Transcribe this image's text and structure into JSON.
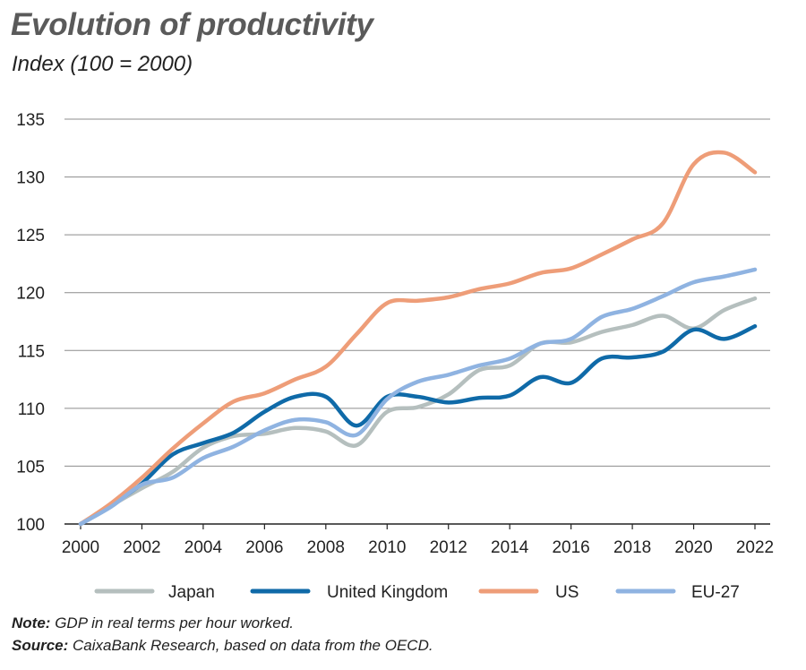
{
  "chart_data": {
    "type": "line",
    "title": "Evolution of productivity",
    "subtitle": "Index (100 = 2000)",
    "xlabel": "",
    "ylabel": "",
    "x": [
      2000,
      2001,
      2002,
      2003,
      2004,
      2005,
      2006,
      2007,
      2008,
      2009,
      2010,
      2011,
      2012,
      2013,
      2014,
      2015,
      2016,
      2017,
      2018,
      2019,
      2020,
      2021,
      2022
    ],
    "xticks": [
      "2000",
      "2002",
      "2004",
      "2006",
      "2008",
      "2010",
      "2012",
      "2014",
      "2016",
      "2018",
      "2020",
      "2022"
    ],
    "yticks": [
      "100",
      "105",
      "110",
      "115",
      "120",
      "125",
      "130",
      "135"
    ],
    "ylim": [
      100,
      135
    ],
    "xlim": [
      2000,
      2022
    ],
    "grid": true,
    "legend_position": "bottom",
    "series": [
      {
        "name": "Japan",
        "color": "#b5bfbe",
        "values": [
          100,
          101.6,
          103.1,
          104.5,
          106.6,
          107.6,
          107.8,
          108.3,
          108.0,
          106.8,
          109.7,
          110.1,
          111.2,
          113.3,
          113.7,
          115.6,
          115.7,
          116.6,
          117.2,
          118.0,
          116.9,
          118.5,
          119.5
        ]
      },
      {
        "name": "United Kingdom",
        "color": "#0f6aa8",
        "values": [
          100,
          101.6,
          103.5,
          106.0,
          107.0,
          107.9,
          109.7,
          111.0,
          111.0,
          108.5,
          111.0,
          111.0,
          110.5,
          110.9,
          111.1,
          112.7,
          112.2,
          114.3,
          114.4,
          114.9,
          116.8,
          116.0,
          117.1
        ]
      },
      {
        "name": "US",
        "color": "#ee9d78",
        "values": [
          100,
          101.8,
          104.0,
          106.5,
          108.7,
          110.6,
          111.3,
          112.5,
          113.6,
          116.4,
          119.1,
          119.3,
          119.6,
          120.3,
          120.8,
          121.7,
          122.1,
          123.3,
          124.6,
          126.0,
          131.1,
          132.1,
          130.4
        ]
      },
      {
        "name": "EU-27",
        "color": "#8fb3e1",
        "values": [
          100,
          101.5,
          103.4,
          104.0,
          105.7,
          106.7,
          108.1,
          109.0,
          108.8,
          107.7,
          110.8,
          112.3,
          112.9,
          113.7,
          114.3,
          115.6,
          116.0,
          117.9,
          118.6,
          119.7,
          120.9,
          121.4,
          122.0
        ]
      }
    ]
  },
  "notes": {
    "note_label": "Note:",
    "note_text": "GDP in real terms per hour worked.",
    "source_label": "Source:",
    "source_text": "CaixaBank Research, based on data from the OECD."
  }
}
